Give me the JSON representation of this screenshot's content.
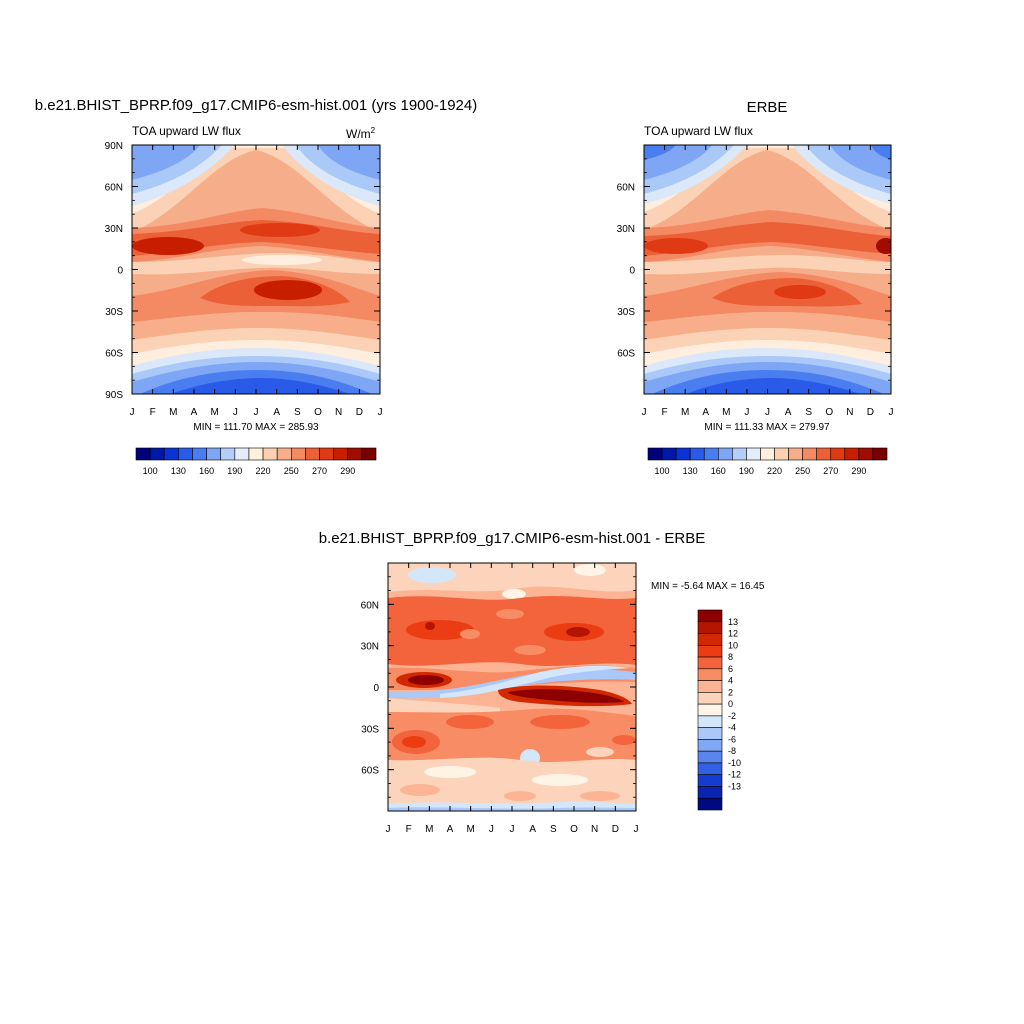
{
  "chart_data": [
    {
      "type": "heatmap",
      "title": "b.e21.BHIST_BPRP.f09_g17.CMIP6-esm-hist.001 (yrs 1900-1924)",
      "subtitle": "TOA upward LW flux",
      "units": "W/m",
      "units_superscript": "2",
      "x_ticks": [
        "J",
        "F",
        "M",
        "A",
        "M",
        "J",
        "J",
        "A",
        "S",
        "O",
        "N",
        "D",
        "J"
      ],
      "y_ticks": [
        "90N",
        "60N",
        "30N",
        "0",
        "30S",
        "60S",
        "90S"
      ],
      "y_tick_values": [
        90,
        60,
        30,
        0,
        -30,
        -60,
        -90
      ],
      "ylim": [
        -90,
        90
      ],
      "min_max_text": "MIN = 111.70 MAX = 285.93",
      "colorbar": {
        "orientation": "horizontal",
        "tick_labels": [
          "100",
          "130",
          "160",
          "190",
          "220",
          "250",
          "270",
          "290"
        ],
        "colors": [
          "#00007a",
          "#0018a8",
          "#0a32d4",
          "#2a5ae8",
          "#4a7ef0",
          "#7ea6f4",
          "#b4cef8",
          "#e4eefa",
          "#fff0dc",
          "#fcd0b0",
          "#f8ae8a",
          "#f48a64",
          "#ec6038",
          "#e03a14",
          "#c81e00",
          "#a00c00",
          "#780000"
        ]
      }
    },
    {
      "type": "heatmap",
      "title": "ERBE",
      "subtitle": "TOA upward LW flux",
      "x_ticks": [
        "J",
        "F",
        "M",
        "A",
        "M",
        "J",
        "J",
        "A",
        "S",
        "O",
        "N",
        "D",
        "J"
      ],
      "y_ticks": [
        "60N",
        "30N",
        "0",
        "30S",
        "60S"
      ],
      "y_tick_values": [
        60,
        30,
        0,
        -30,
        -60
      ],
      "ylim": [
        -90,
        90
      ],
      "min_max_text": "MIN = 111.33 MAX = 279.97",
      "colorbar": {
        "orientation": "horizontal",
        "tick_labels": [
          "100",
          "130",
          "160",
          "190",
          "220",
          "250",
          "270",
          "290"
        ]
      }
    },
    {
      "type": "heatmap",
      "title": "b.e21.BHIST_BPRP.f09_g17.CMIP6-esm-hist.001 - ERBE",
      "x_ticks": [
        "J",
        "F",
        "M",
        "A",
        "M",
        "J",
        "J",
        "A",
        "S",
        "O",
        "N",
        "D",
        "J"
      ],
      "y_ticks": [
        "60N",
        "30N",
        "0",
        "30S",
        "60S"
      ],
      "y_tick_values": [
        60,
        30,
        0,
        -30,
        -60
      ],
      "ylim": [
        -90,
        90
      ],
      "min_max_text": "MIN =  -5.64 MAX =  16.45",
      "colorbar": {
        "orientation": "vertical",
        "tick_labels": [
          "13",
          "12",
          "10",
          "8",
          "6",
          "4",
          "2",
          "0",
          "-2",
          "-4",
          "-6",
          "-8",
          "-10",
          "-12",
          "-13"
        ],
        "colors": [
          "#8c0000",
          "#b41400",
          "#d22800",
          "#ec3c14",
          "#f4643c",
          "#f88c64",
          "#fcb494",
          "#fcd4bc",
          "#fff4e6",
          "#d4e6fa",
          "#aac8f8",
          "#80a8f4",
          "#5a84ee",
          "#3460e4",
          "#143cd0",
          "#0a24b0",
          "#000a80"
        ]
      }
    }
  ]
}
